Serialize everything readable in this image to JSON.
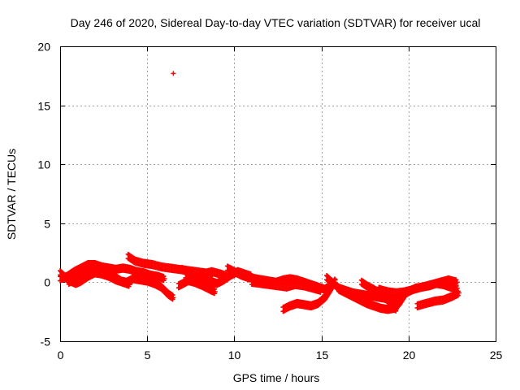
{
  "chart_data": {
    "type": "scatter",
    "title": "Day 246 of 2020, Sidereal Day-to-day VTEC variation (SDTVAR) for receiver ucal",
    "xlabel": "GPS time / hours",
    "ylabel": "SDTVAR / TECUs",
    "xlim": [
      0,
      25
    ],
    "ylim": [
      -5,
      20
    ],
    "grid": true,
    "x_ticks": [
      0,
      5,
      10,
      15,
      20,
      25
    ],
    "y_ticks": [
      -5,
      0,
      5,
      10,
      15,
      20
    ],
    "x_tick_labels": [
      "0",
      "5",
      "10",
      "15",
      "20",
      "25"
    ],
    "y_tick_labels": [
      "-5",
      "0",
      "5",
      "10",
      "15",
      "20"
    ],
    "marker": "plus",
    "colors": {
      "series": "#ff0000",
      "axis": "#000000",
      "grid": "#a0a0a0"
    },
    "series": [
      {
        "name": "SDTVAR",
        "tracks": [
          [
            [
              0.0,
              0.3
            ],
            [
              0.4,
              0.5
            ],
            [
              0.8,
              0.9
            ],
            [
              1.2,
              1.2
            ],
            [
              1.6,
              1.5
            ],
            [
              2.0,
              1.5
            ],
            [
              2.4,
              1.3
            ],
            [
              2.8,
              1.2
            ],
            [
              3.2,
              1.1
            ],
            [
              3.6,
              1.2
            ],
            [
              4.0,
              1.1
            ],
            [
              4.4,
              0.9
            ],
            [
              4.8,
              0.8
            ],
            [
              5.2,
              0.6
            ],
            [
              5.6,
              0.5
            ],
            [
              6.0,
              0.3
            ]
          ],
          [
            [
              0.0,
              0.8
            ],
            [
              0.3,
              0.4
            ],
            [
              0.6,
              0.1
            ],
            [
              0.9,
              -0.1
            ],
            [
              1.2,
              0.1
            ],
            [
              1.6,
              0.5
            ],
            [
              2.0,
              0.8
            ],
            [
              2.4,
              0.7
            ],
            [
              2.8,
              0.5
            ],
            [
              3.2,
              0.2
            ],
            [
              3.6,
              0.0
            ],
            [
              4.0,
              -0.2
            ]
          ],
          [
            [
              0.5,
              0.0
            ],
            [
              0.9,
              0.3
            ],
            [
              1.3,
              0.6
            ],
            [
              1.7,
              0.9
            ],
            [
              2.1,
              1.1
            ],
            [
              2.5,
              1.0
            ],
            [
              2.9,
              0.8
            ],
            [
              3.2,
              0.4
            ],
            [
              3.5,
              0.1
            ],
            [
              3.8,
              0.0
            ],
            [
              4.2,
              0.3
            ],
            [
              4.6,
              0.2
            ],
            [
              5.0,
              0.1
            ],
            [
              5.4,
              -0.1
            ],
            [
              5.8,
              -0.4
            ],
            [
              6.2,
              -1.0
            ],
            [
              6.5,
              -1.3
            ]
          ],
          [
            [
              3.9,
              2.2
            ],
            [
              4.3,
              1.8
            ],
            [
              4.8,
              1.6
            ],
            [
              5.3,
              1.5
            ],
            [
              5.8,
              1.3
            ],
            [
              6.3,
              1.2
            ],
            [
              6.8,
              1.1
            ],
            [
              7.3,
              1.0
            ],
            [
              7.8,
              0.9
            ],
            [
              8.3,
              0.8
            ],
            [
              8.8,
              0.7
            ]
          ],
          [
            [
              6.8,
              -0.3
            ],
            [
              7.2,
              0.0
            ],
            [
              7.7,
              0.4
            ],
            [
              8.2,
              0.7
            ],
            [
              8.7,
              0.9
            ],
            [
              9.2,
              0.7
            ],
            [
              9.6,
              0.5
            ]
          ],
          [
            [
              7.0,
              1.1
            ],
            [
              7.4,
              0.8
            ],
            [
              7.8,
              0.5
            ],
            [
              8.2,
              0.3
            ],
            [
              8.6,
              0.1
            ],
            [
              9.0,
              -0.1
            ],
            [
              9.4,
              0.2
            ],
            [
              9.8,
              0.6
            ],
            [
              10.2,
              0.9
            ],
            [
              10.6,
              0.7
            ],
            [
              11.0,
              0.5
            ]
          ],
          [
            [
              7.2,
              0.2
            ],
            [
              7.7,
              0.0
            ],
            [
              8.2,
              -0.3
            ],
            [
              8.6,
              -0.6
            ],
            [
              8.9,
              -0.8
            ]
          ],
          [
            [
              9.6,
              1.2
            ],
            [
              10.0,
              0.9
            ],
            [
              10.4,
              0.6
            ],
            [
              10.8,
              0.4
            ],
            [
              11.2,
              0.3
            ],
            [
              11.6,
              0.2
            ],
            [
              12.0,
              0.1
            ],
            [
              12.4,
              0.0
            ],
            [
              12.8,
              0.2
            ],
            [
              13.2,
              0.3
            ],
            [
              13.6,
              0.2
            ],
            [
              14.0,
              0.0
            ],
            [
              14.4,
              -0.2
            ],
            [
              14.8,
              -0.4
            ],
            [
              15.2,
              -0.6
            ],
            [
              15.5,
              -0.3
            ]
          ],
          [
            [
              11.0,
              0.0
            ],
            [
              11.5,
              -0.1
            ],
            [
              12.0,
              -0.2
            ],
            [
              12.5,
              -0.3
            ],
            [
              13.0,
              -0.4
            ],
            [
              13.5,
              -0.2
            ],
            [
              14.0,
              -0.3
            ],
            [
              14.5,
              -0.5
            ],
            [
              15.0,
              -0.7
            ]
          ],
          [
            [
              12.8,
              -2.3
            ],
            [
              13.2,
              -2.0
            ],
            [
              13.6,
              -1.8
            ],
            [
              14.0,
              -1.9
            ],
            [
              14.4,
              -2.0
            ],
            [
              14.8,
              -1.8
            ],
            [
              15.2,
              -1.3
            ],
            [
              15.5,
              -0.6
            ],
            [
              15.8,
              0.2
            ]
          ],
          [
            [
              15.3,
              0.4
            ],
            [
              15.6,
              0.0
            ],
            [
              16.0,
              -0.5
            ],
            [
              16.4,
              -0.7
            ],
            [
              16.8,
              -0.9
            ],
            [
              17.2,
              -1.0
            ],
            [
              17.6,
              -1.1
            ],
            [
              18.0,
              -1.2
            ],
            [
              18.4,
              -1.3
            ],
            [
              18.8,
              -1.4
            ],
            [
              19.2,
              -1.5
            ],
            [
              19.6,
              -1.2
            ],
            [
              20.0,
              -0.8
            ],
            [
              20.4,
              -0.5
            ],
            [
              20.8,
              -0.4
            ],
            [
              21.2,
              -0.3
            ],
            [
              21.6,
              -0.1
            ],
            [
              22.0,
              -0.2
            ],
            [
              22.4,
              -0.4
            ],
            [
              22.8,
              -0.5
            ]
          ],
          [
            [
              16.0,
              -0.6
            ],
            [
              16.4,
              -0.9
            ],
            [
              16.8,
              -1.2
            ],
            [
              17.2,
              -1.5
            ],
            [
              17.6,
              -1.8
            ],
            [
              18.0,
              -2.0
            ],
            [
              18.4,
              -2.2
            ],
            [
              18.8,
              -2.3
            ],
            [
              19.2,
              -2.2
            ],
            [
              19.5,
              -1.7
            ],
            [
              19.8,
              -1.0
            ]
          ],
          [
            [
              17.3,
              0.0
            ],
            [
              17.6,
              -0.3
            ],
            [
              18.0,
              -0.6
            ],
            [
              18.4,
              -1.0
            ],
            [
              18.8,
              -1.5
            ],
            [
              19.1,
              -2.0
            ],
            [
              19.3,
              -2.3
            ]
          ],
          [
            [
              18.3,
              -0.6
            ],
            [
              18.8,
              -0.8
            ],
            [
              19.3,
              -0.9
            ],
            [
              19.8,
              -0.8
            ],
            [
              20.3,
              -0.6
            ],
            [
              20.8,
              -0.4
            ],
            [
              21.3,
              -0.2
            ],
            [
              21.8,
              0.0
            ],
            [
              22.3,
              0.2
            ],
            [
              22.8,
              0.0
            ]
          ],
          [
            [
              20.5,
              -2.0
            ],
            [
              21.0,
              -1.8
            ],
            [
              21.5,
              -1.6
            ],
            [
              22.0,
              -1.5
            ],
            [
              22.5,
              -1.2
            ],
            [
              22.9,
              -0.9
            ]
          ]
        ],
        "points": [
          [
            6.5,
            17.7
          ]
        ]
      }
    ]
  }
}
